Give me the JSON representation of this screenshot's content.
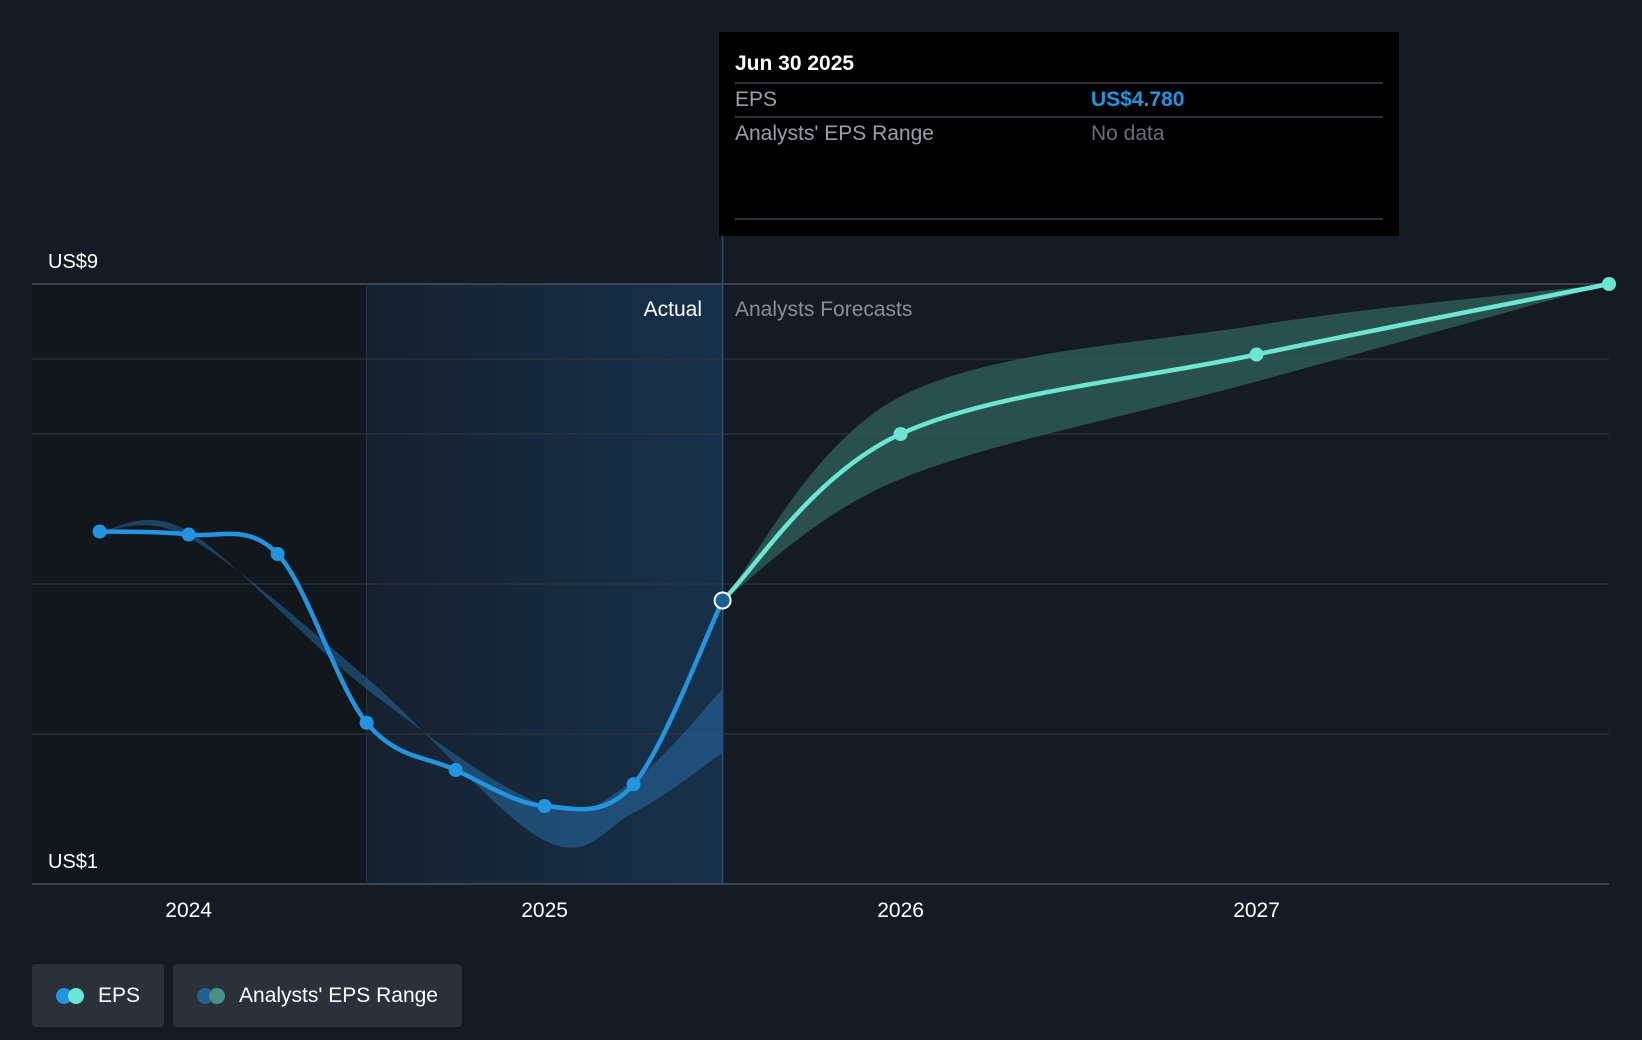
{
  "colors": {
    "background": "#151b24",
    "actual_line": "#2394df",
    "forecast_line": "#6ce6d1",
    "actual_range": "#2b78b5",
    "forecast_range": "#2f5d5a",
    "highlight_band": "#17324d",
    "gridline": "#303741",
    "axis_text": "#ffffff",
    "muted_text": "#8a8f96",
    "tooltip_bg": "#000000"
  },
  "tooltip": {
    "date": "Jun 30 2025",
    "eps_label": "EPS",
    "eps_value": "US$4.780",
    "range_label": "Analysts' EPS Range",
    "range_value": "No data"
  },
  "section_labels": {
    "actual": "Actual",
    "forecast": "Analysts Forecasts"
  },
  "legend": {
    "items": [
      {
        "label": "EPS",
        "icon": "eps-legend-dots"
      },
      {
        "label": "Analysts' EPS Range",
        "icon": "range-legend-dots"
      }
    ]
  },
  "chart_data": {
    "type": "line",
    "y_axis": {
      "min": 1,
      "max": 9,
      "labels": [
        "US$9",
        "US$1"
      ],
      "gridlines": [
        1,
        3,
        5,
        7,
        8,
        9
      ]
    },
    "x_axis": {
      "ticks": [
        "2024",
        "2025",
        "2026",
        "2027"
      ],
      "tick_values": [
        2024.0,
        2025.0,
        2026.0,
        2027.0
      ],
      "range": [
        2023.56,
        2027.99
      ]
    },
    "highlight_region": {
      "from": 2024.5,
      "to": 2025.5
    },
    "divider": 2025.5,
    "series": [
      {
        "name": "EPS",
        "segment": "actual",
        "points": [
          {
            "x": 2023.75,
            "y": 5.7
          },
          {
            "x": 2024.0,
            "y": 5.66
          },
          {
            "x": 2024.25,
            "y": 5.4
          },
          {
            "x": 2024.5,
            "y": 3.15
          },
          {
            "x": 2024.75,
            "y": 2.52
          },
          {
            "x": 2025.0,
            "y": 2.04
          },
          {
            "x": 2025.25,
            "y": 2.33
          },
          {
            "x": 2025.5,
            "y": 4.78
          }
        ]
      },
      {
        "name": "EPS",
        "segment": "forecast",
        "points": [
          {
            "x": 2025.5,
            "y": 4.78
          },
          {
            "x": 2026.0,
            "y": 7.0
          },
          {
            "x": 2027.0,
            "y": 8.06
          },
          {
            "x": 2027.99,
            "y": 9.0
          }
        ]
      }
    ],
    "ranges": [
      {
        "name": "Analysts' EPS Range",
        "segment": "actual",
        "upper": [
          {
            "x": 2023.75,
            "y": 5.7
          },
          {
            "x": 2024.0,
            "y": 5.7
          },
          {
            "x": 2024.5,
            "y": 3.6
          },
          {
            "x": 2025.0,
            "y": 2.05
          },
          {
            "x": 2025.25,
            "y": 2.38
          },
          {
            "x": 2025.5,
            "y": 3.6
          }
        ],
        "lower": [
          {
            "x": 2023.75,
            "y": 5.7
          },
          {
            "x": 2024.0,
            "y": 5.62
          },
          {
            "x": 2024.5,
            "y": 3.75
          },
          {
            "x": 2025.0,
            "y": 1.58
          },
          {
            "x": 2025.25,
            "y": 1.95
          },
          {
            "x": 2025.5,
            "y": 2.75
          }
        ]
      },
      {
        "name": "Analysts' EPS Range",
        "segment": "forecast",
        "upper": [
          {
            "x": 2025.5,
            "y": 4.78
          },
          {
            "x": 2026.0,
            "y": 7.5
          },
          {
            "x": 2027.0,
            "y": 8.45
          },
          {
            "x": 2027.99,
            "y": 9.0
          }
        ],
        "lower": [
          {
            "x": 2025.5,
            "y": 4.78
          },
          {
            "x": 2026.0,
            "y": 6.4
          },
          {
            "x": 2027.0,
            "y": 7.7
          },
          {
            "x": 2027.99,
            "y": 9.0
          }
        ]
      }
    ]
  }
}
